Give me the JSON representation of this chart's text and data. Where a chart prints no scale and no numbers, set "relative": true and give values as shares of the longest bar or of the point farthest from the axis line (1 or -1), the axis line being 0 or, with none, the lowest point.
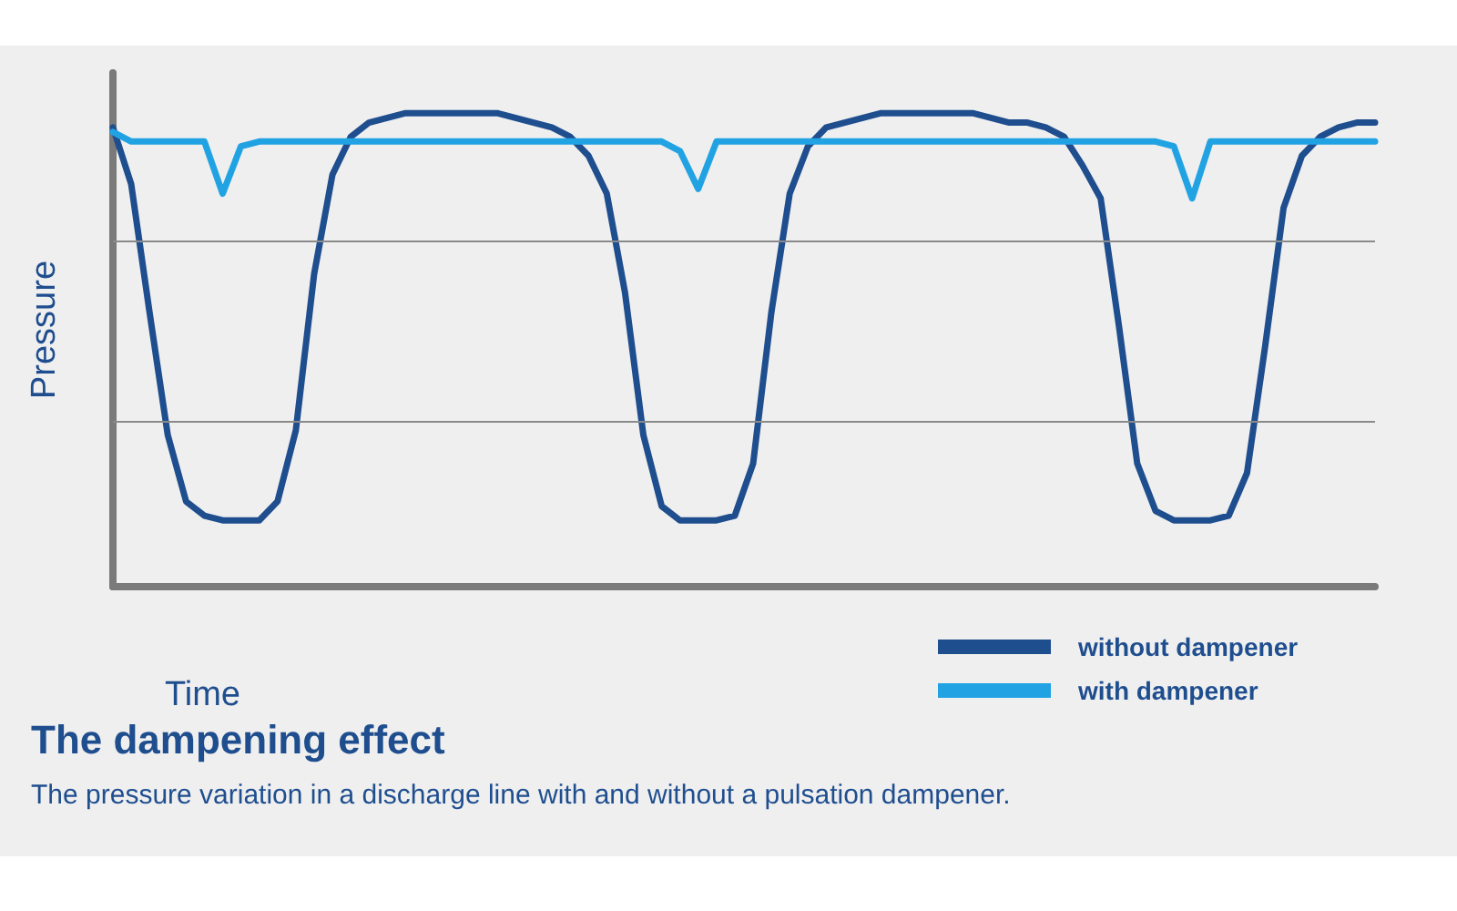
{
  "chart_data": {
    "type": "line",
    "title": "The dampening effect",
    "subtitle": "The pressure variation in a discharge line with and without a pulsation dampener.",
    "xlabel": "Time",
    "ylabel": "Pressure",
    "relative": true,
    "ref_lines": [
      {
        "axis": "y",
        "value": 0.35,
        "color": "#8a8a8a"
      },
      {
        "axis": "y",
        "value": 0.73,
        "color": "#8a8a8a"
      }
    ],
    "legend": "bottom right",
    "marker": "none",
    "line_style": "solid",
    "categories": [
      null,
      null,
      null,
      null,
      null,
      null,
      null,
      null,
      null,
      null,
      null,
      null,
      null,
      null,
      null,
      null,
      null,
      null,
      null,
      null,
      null,
      null,
      null,
      null,
      null,
      null,
      null,
      null,
      null,
      null,
      null,
      null,
      null,
      null,
      null,
      null,
      null,
      null,
      null,
      null,
      null,
      null,
      null,
      null,
      null,
      null,
      null,
      null,
      null,
      null,
      null,
      null,
      null,
      null,
      null,
      null,
      null,
      null,
      null,
      null,
      null,
      null,
      null,
      null,
      null,
      null,
      null,
      null,
      null,
      null
    ],
    "series": [
      {
        "name": "without dampener",
        "color": "#1f4e8f",
        "values": [
          0.97,
          0.85,
          0.58,
          0.32,
          0.18,
          0.15,
          0.14,
          0.14,
          0.14,
          0.18,
          0.33,
          0.66,
          0.87,
          0.95,
          0.98,
          0.99,
          1.0,
          1.0,
          1.0,
          1.0,
          1.0,
          1.0,
          0.99,
          0.98,
          0.97,
          0.95,
          0.91,
          0.83,
          0.62,
          0.32,
          0.17,
          0.14,
          0.14,
          0.14,
          0.15,
          0.26,
          0.58,
          0.83,
          0.93,
          0.97,
          0.98,
          0.99,
          1.0,
          1.0,
          1.0,
          1.0,
          1.0,
          1.0,
          0.99,
          0.98,
          0.98,
          0.97,
          0.95,
          0.89,
          0.82,
          0.55,
          0.26,
          0.16,
          0.14,
          0.14,
          0.14,
          0.15,
          0.24,
          0.51,
          0.8,
          0.91,
          0.95,
          0.97,
          0.98,
          0.98
        ]
      },
      {
        "name": "with dampener",
        "color": "#21a3e3",
        "values": [
          0.96,
          0.94,
          0.94,
          0.94,
          0.94,
          0.94,
          0.83,
          0.93,
          0.94,
          0.94,
          0.94,
          0.94,
          0.94,
          0.94,
          0.94,
          0.94,
          0.94,
          0.94,
          0.94,
          0.94,
          0.94,
          0.94,
          0.94,
          0.94,
          0.94,
          0.94,
          0.94,
          0.94,
          0.94,
          0.94,
          0.94,
          0.92,
          0.84,
          0.94,
          0.94,
          0.94,
          0.94,
          0.94,
          0.94,
          0.94,
          0.94,
          0.94,
          0.94,
          0.94,
          0.94,
          0.94,
          0.94,
          0.94,
          0.94,
          0.94,
          0.94,
          0.94,
          0.94,
          0.94,
          0.94,
          0.94,
          0.94,
          0.94,
          0.93,
          0.82,
          0.94,
          0.94,
          0.94,
          0.94,
          0.94,
          0.94,
          0.94,
          0.94,
          0.94,
          0.94
        ]
      }
    ]
  }
}
